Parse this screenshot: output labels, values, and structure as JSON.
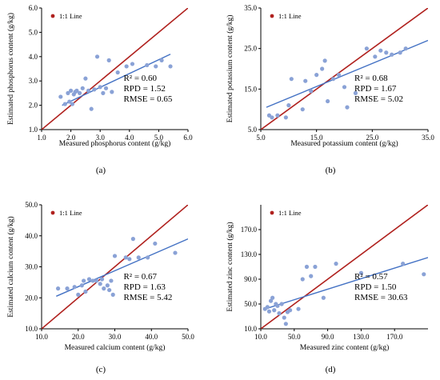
{
  "colors": {
    "identity_line": "#b0211e",
    "regression_line": "#4472c4",
    "point": "#8aa2d6",
    "axis": "#000000",
    "legend_dot": "#b0211e"
  },
  "chart_data": [
    {
      "type": "scatter",
      "panel_label": "(a)",
      "xlabel": "Measured phosphorus content (g/kg)",
      "ylabel": "Estimated phosphorus content (g/kg)",
      "xlim": [
        1.0,
        6.0
      ],
      "ylim": [
        1.0,
        6.0
      ],
      "xticks": [
        "1.0",
        "2.0",
        "3.0",
        "4.0",
        "5.0",
        "6.0"
      ],
      "yticks": [
        "1.0",
        "2.0",
        "3.0",
        "4.0",
        "5.0",
        "6.0"
      ],
      "legend": "1:1 Line",
      "stats": [
        "R² = 0.60",
        "RPD = 1.52",
        "RMSE = 0.65"
      ],
      "regression": [
        [
          1.7,
          2.0
        ],
        [
          5.4,
          4.1
        ]
      ],
      "points": [
        [
          1.65,
          2.35
        ],
        [
          1.8,
          2.05
        ],
        [
          1.9,
          2.5
        ],
        [
          1.95,
          2.15
        ],
        [
          2.0,
          2.6
        ],
        [
          2.05,
          2.05
        ],
        [
          2.1,
          2.45
        ],
        [
          2.15,
          2.55
        ],
        [
          2.2,
          2.6
        ],
        [
          2.3,
          2.5
        ],
        [
          2.4,
          2.7
        ],
        [
          2.5,
          3.1
        ],
        [
          2.6,
          2.6
        ],
        [
          2.7,
          1.85
        ],
        [
          2.8,
          2.65
        ],
        [
          2.9,
          4.0
        ],
        [
          3.0,
          2.75
        ],
        [
          3.1,
          2.5
        ],
        [
          3.2,
          2.7
        ],
        [
          3.3,
          3.85
        ],
        [
          3.4,
          2.55
        ],
        [
          3.6,
          3.35
        ],
        [
          3.9,
          3.6
        ],
        [
          4.1,
          3.7
        ],
        [
          4.6,
          3.65
        ],
        [
          4.9,
          3.6
        ],
        [
          5.1,
          3.85
        ],
        [
          5.4,
          3.6
        ]
      ]
    },
    {
      "type": "scatter",
      "panel_label": "(b)",
      "xlabel": "Measured potassium content (g/kg)",
      "ylabel": "Estimated potassium content (g/kg)",
      "xlim": [
        5.0,
        35.0
      ],
      "ylim": [
        5.0,
        35.0
      ],
      "xticks": [
        "5.0",
        "15.0",
        "25.0",
        "35.0"
      ],
      "yticks": [
        "5.0",
        "15.0",
        "25.0",
        "35.0"
      ],
      "legend": "1:1 Line",
      "stats": [
        "R² = 0.68",
        "RPD = 1.67",
        "RMSE = 5.02"
      ],
      "regression": [
        [
          6.0,
          10.5
        ],
        [
          35.0,
          27.0
        ]
      ],
      "points": [
        [
          6.5,
          8.5
        ],
        [
          7.0,
          8.0
        ],
        [
          8.0,
          8.5
        ],
        [
          9.5,
          8.0
        ],
        [
          10.0,
          11.0
        ],
        [
          10.5,
          17.5
        ],
        [
          12.5,
          10.0
        ],
        [
          13.0,
          17.0
        ],
        [
          14.0,
          14.5
        ],
        [
          15.0,
          18.5
        ],
        [
          16.0,
          20.0
        ],
        [
          16.5,
          22.0
        ],
        [
          17.0,
          12.0
        ],
        [
          18.0,
          17.5
        ],
        [
          19.0,
          18.5
        ],
        [
          20.0,
          15.5
        ],
        [
          20.5,
          10.5
        ],
        [
          22.0,
          14.0
        ],
        [
          24.0,
          25.0
        ],
        [
          25.5,
          23.0
        ],
        [
          26.5,
          24.5
        ],
        [
          27.5,
          24.0
        ],
        [
          28.5,
          23.5
        ],
        [
          30.0,
          24.0
        ],
        [
          31.0,
          25.0
        ]
      ]
    },
    {
      "type": "scatter",
      "panel_label": "(c)",
      "xlabel": "Measured calcium content (g/kg)",
      "ylabel": "Estimated calcium content (g/kg)",
      "xlim": [
        10.0,
        50.0
      ],
      "ylim": [
        10.0,
        50.0
      ],
      "xticks": [
        "10.0",
        "20.0",
        "30.0",
        "40.0",
        "50.0"
      ],
      "yticks": [
        "10.0",
        "20.0",
        "30.0",
        "40.0",
        "50.0"
      ],
      "legend": "1:1 Line",
      "stats": [
        "R² = 0.67",
        "RPD = 1.63",
        "RMSE = 5.42"
      ],
      "regression": [
        [
          14.0,
          20.5
        ],
        [
          50.0,
          39.0
        ]
      ],
      "points": [
        [
          14.5,
          23.0
        ],
        [
          17.0,
          23.0
        ],
        [
          19.0,
          23.5
        ],
        [
          20.0,
          21.0
        ],
        [
          21.0,
          24.0
        ],
        [
          21.5,
          25.5
        ],
        [
          22.0,
          22.0
        ],
        [
          23.0,
          26.0
        ],
        [
          24.0,
          25.5
        ],
        [
          25.0,
          25.5
        ],
        [
          26.0,
          24.5
        ],
        [
          26.5,
          26.0
        ],
        [
          27.0,
          23.0
        ],
        [
          28.0,
          24.0
        ],
        [
          28.5,
          22.5
        ],
        [
          29.0,
          25.5
        ],
        [
          29.5,
          21.0
        ],
        [
          30.0,
          33.5
        ],
        [
          33.0,
          33.0
        ],
        [
          34.0,
          32.5
        ],
        [
          35.0,
          39.0
        ],
        [
          36.5,
          33.0
        ],
        [
          39.0,
          33.0
        ],
        [
          41.0,
          37.5
        ],
        [
          46.5,
          34.5
        ]
      ]
    },
    {
      "type": "scatter",
      "panel_label": "(d)",
      "xlabel": "Measured zinc content (g/kg)",
      "ylabel": "Estimated zinc content (g/kg)",
      "xlim": [
        10.0,
        210.0
      ],
      "ylim": [
        10.0,
        210.0
      ],
      "xticks": [
        "10.0",
        "50.0",
        "90.0",
        "130.0",
        "170.0"
      ],
      "yticks": [
        "10.0",
        "50.0",
        "90.0",
        "130.0",
        "170.0"
      ],
      "legend": "1:1 Line",
      "stats": [
        "R² = 0.57",
        "RPD = 1.50",
        "RMSE = 30.63"
      ],
      "regression": [
        [
          15.0,
          42.0
        ],
        [
          210.0,
          125.0
        ]
      ],
      "points": [
        [
          15.0,
          42.0
        ],
        [
          18.0,
          45.0
        ],
        [
          20.0,
          38.0
        ],
        [
          22.0,
          55.0
        ],
        [
          24.0,
          60.0
        ],
        [
          26.0,
          40.0
        ],
        [
          28.0,
          50.0
        ],
        [
          30.0,
          47.0
        ],
        [
          32.0,
          35.0
        ],
        [
          35.0,
          50.0
        ],
        [
          38.0,
          28.0
        ],
        [
          40.0,
          18.0
        ],
        [
          42.0,
          37.0
        ],
        [
          45.0,
          40.0
        ],
        [
          55.0,
          42.0
        ],
        [
          60.0,
          90.0
        ],
        [
          65.0,
          110.0
        ],
        [
          70.0,
          95.0
        ],
        [
          75.0,
          110.0
        ],
        [
          85.0,
          60.0
        ],
        [
          100.0,
          115.0
        ],
        [
          130.0,
          100.0
        ],
        [
          180.0,
          115.0
        ],
        [
          205.0,
          98.0
        ]
      ]
    }
  ]
}
